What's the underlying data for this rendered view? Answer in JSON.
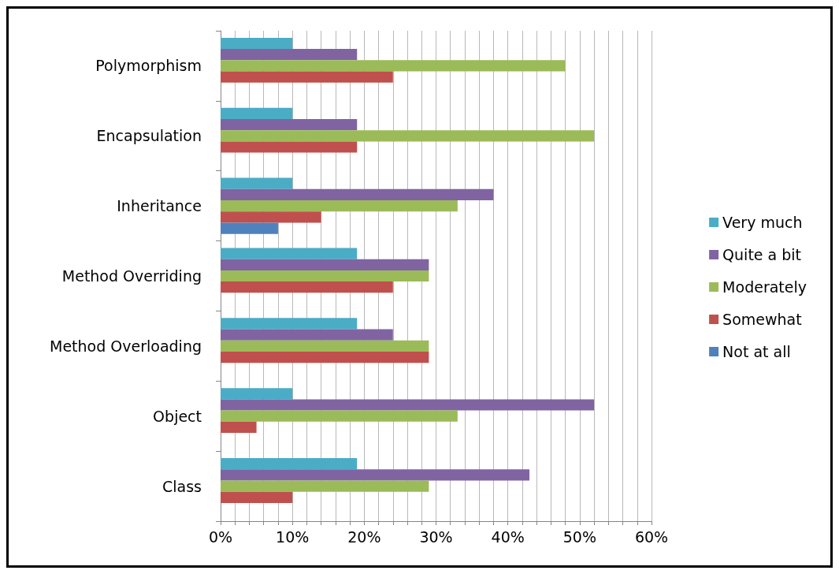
{
  "chart_data": {
    "type": "bar",
    "orientation": "horizontal",
    "categories": [
      "Polymorphism",
      "Encapsulation",
      "Inheritance",
      "Method Overriding",
      "Method Overloading",
      "Object",
      "Class"
    ],
    "series": [
      {
        "name": "Very much",
        "color": "#4bacc6",
        "values": [
          10,
          10,
          10,
          19,
          19,
          10,
          19
        ]
      },
      {
        "name": "Quite a bit",
        "color": "#8064a2",
        "values": [
          19,
          19,
          38,
          29,
          24,
          52,
          43
        ]
      },
      {
        "name": "Moderately",
        "color": "#9bbb59",
        "values": [
          48,
          52,
          33,
          29,
          29,
          33,
          29
        ]
      },
      {
        "name": "Somewhat",
        "color": "#c0504d",
        "values": [
          24,
          19,
          14,
          24,
          29,
          5,
          10
        ]
      },
      {
        "name": "Not at all",
        "color": "#4f81bd",
        "values": [
          0,
          0,
          8,
          0,
          0,
          0,
          0
        ]
      }
    ],
    "xlim": [
      0,
      60
    ],
    "xticks": [
      {
        "value": 0,
        "label": "0%"
      },
      {
        "value": 2,
        "label": null
      },
      {
        "value": 4,
        "label": null
      },
      {
        "value": 6,
        "label": null
      },
      {
        "value": 8,
        "label": null
      },
      {
        "value": 10,
        "label": "10%"
      },
      {
        "value": 12,
        "label": null
      },
      {
        "value": 14,
        "label": null
      },
      {
        "value": 16,
        "label": null
      },
      {
        "value": 18,
        "label": null
      },
      {
        "value": 20,
        "label": "20%"
      },
      {
        "value": 22,
        "label": null
      },
      {
        "value": 24,
        "label": null
      },
      {
        "value": 26,
        "label": null
      },
      {
        "value": 28,
        "label": null
      },
      {
        "value": 30,
        "label": "30%"
      },
      {
        "value": 32,
        "label": null
      },
      {
        "value": 34,
        "label": null
      },
      {
        "value": 36,
        "label": null
      },
      {
        "value": 38,
        "label": null
      },
      {
        "value": 40,
        "label": "40%"
      },
      {
        "value": 42,
        "label": null
      },
      {
        "value": 44,
        "label": null
      },
      {
        "value": 46,
        "label": null
      },
      {
        "value": 48,
        "label": null
      },
      {
        "value": 50,
        "label": "50%"
      },
      {
        "value": 52,
        "label": null
      },
      {
        "value": 54,
        "label": null
      },
      {
        "value": 56,
        "label": null
      },
      {
        "value": 58,
        "label": null
      },
      {
        "value": 60,
        "label": "60%"
      }
    ],
    "grid": "x",
    "legend": "right"
  }
}
